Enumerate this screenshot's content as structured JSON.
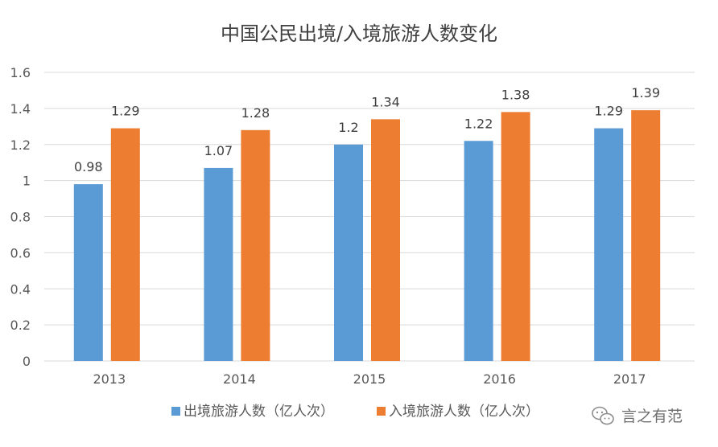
{
  "chart_data": {
    "type": "bar",
    "title": "中国公民出境/入境旅游人数变化",
    "categories": [
      "2013",
      "2014",
      "2015",
      "2016",
      "2017"
    ],
    "series": [
      {
        "name": "出境旅游人数（亿人次）",
        "values": [
          0.98,
          1.07,
          1.2,
          1.22,
          1.29
        ],
        "labels": [
          "0.98",
          "1.07",
          "1.2",
          "1.22",
          "1.29"
        ],
        "color": "#5B9BD5"
      },
      {
        "name": "入境旅游人数（亿人次）",
        "values": [
          1.29,
          1.28,
          1.34,
          1.38,
          1.39
        ],
        "labels": [
          "1.29",
          "1.28",
          "1.34",
          "1.38",
          "1.39"
        ],
        "color": "#ED7D31"
      }
    ],
    "ylim": [
      0,
      1.6
    ],
    "yticks": [
      "0",
      "0.2",
      "0.4",
      "0.6",
      "0.8",
      "1",
      "1.2",
      "1.4",
      "1.6"
    ],
    "grid": true,
    "legend_position": "bottom"
  },
  "watermark": {
    "text": "言之有范",
    "icon": "wechat-icon"
  },
  "colors": {
    "gridline": "#D9D9D9",
    "axis_text": "#595959",
    "title_text": "#404040",
    "label_text": "#404040"
  }
}
